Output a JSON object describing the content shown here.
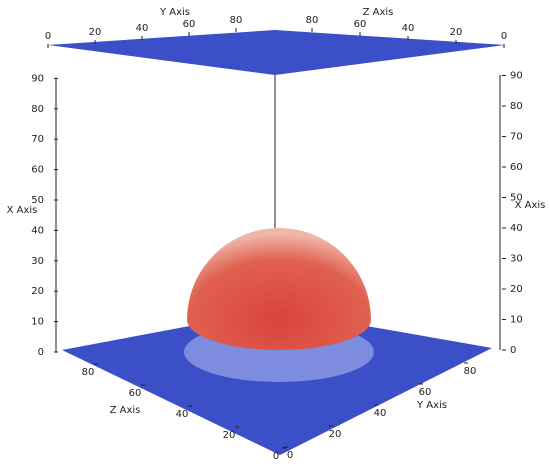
{
  "axes": [
    {
      "title": "Y Axis",
      "ticks": [
        0,
        20,
        40,
        60,
        80
      ]
    },
    {
      "title": "Z Axis",
      "ticks": [
        80,
        60,
        40,
        20,
        0
      ]
    },
    {
      "title": "X Axis",
      "ticks": [
        0,
        10,
        20,
        30,
        40,
        50,
        60,
        70,
        80,
        90
      ]
    },
    {
      "title": "X Axis",
      "ticks": [
        0,
        10,
        20,
        30,
        40,
        50,
        60,
        70,
        80,
        90
      ]
    },
    {
      "title": "Z Axis",
      "ticks": [
        80,
        60,
        40,
        20,
        0
      ]
    },
    {
      "title": "Y Axis",
      "ticks": [
        0,
        20,
        40,
        60,
        80
      ]
    }
  ]
}
